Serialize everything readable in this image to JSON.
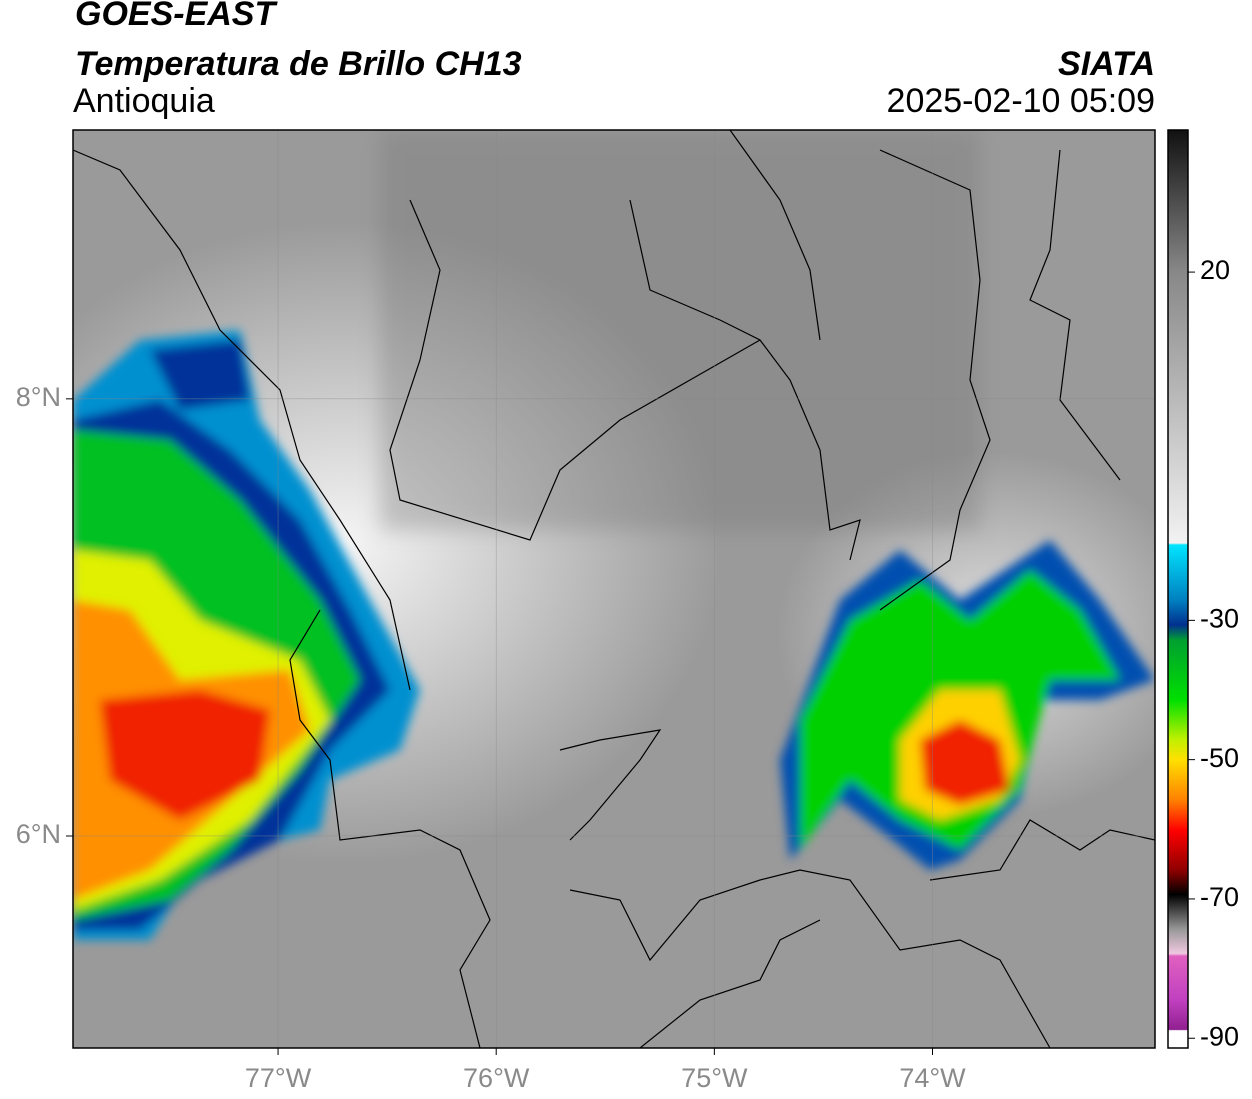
{
  "chart_data": {
    "type": "map",
    "title": "GOES-EAST",
    "subtitle": "Temperatura de Brillo CH13",
    "region": "Antioquia",
    "source": "SIATA",
    "timestamp": "2025-02-10 05:09",
    "xlim": [
      -77.94,
      -72.98
    ],
    "ylim": [
      5.03,
      9.23
    ],
    "xticks": [
      {
        "value": -77,
        "label": "77°W"
      },
      {
        "value": -76,
        "label": "76°W"
      },
      {
        "value": -75,
        "label": "75°W"
      },
      {
        "value": -74,
        "label": "74°W"
      }
    ],
    "yticks": [
      {
        "value": 6,
        "label": "6°N"
      },
      {
        "value": 8,
        "label": "8°N"
      }
    ],
    "grid": true,
    "colorbar": {
      "lim": [
        -91.4,
        40.4
      ],
      "ticks": [
        20,
        -30,
        -50,
        -70,
        -90
      ]
    }
  }
}
